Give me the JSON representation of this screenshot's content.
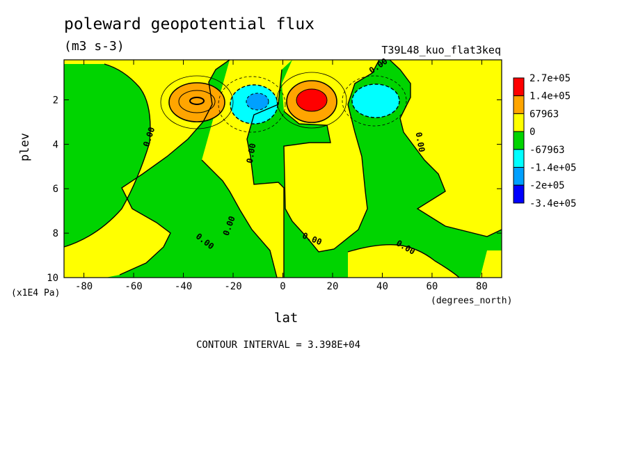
{
  "chart_data": {
    "type": "heatmap",
    "title": "poleward geopotential flux",
    "units": "(m3 s-3)",
    "run_id": "T39L48_kuo_flat3keq",
    "xlabel": "lat",
    "x_unit": "(degrees_north)",
    "ylabel": "plev",
    "y_multiplier": "(x1E4 Pa)",
    "contour_interval_text": "CONTOUR INTERVAL = 3.398E+04",
    "xlim": [
      -88,
      88
    ],
    "ylim": [
      10,
      0.2
    ],
    "x_ticks": [
      -80,
      -60,
      -40,
      -20,
      0,
      20,
      40,
      60,
      80
    ],
    "x_tick_labels": [
      "-80",
      "-60",
      "-40",
      "-20",
      "0",
      "20",
      "40",
      "60",
      "80"
    ],
    "y_ticks": [
      2,
      4,
      6,
      8,
      10
    ],
    "y_tick_labels": [
      "2",
      "4",
      "6",
      "8",
      "10"
    ],
    "levels_legend": [
      "2.7e+05",
      "1.4e+05",
      "67963",
      "0",
      "-67963",
      "-1.4e+05",
      "-2e+05",
      "-3.4e+05"
    ],
    "legend_colors": [
      "#ff0000",
      "#ffa500",
      "#ffff00",
      "#00d400",
      "#00ffff",
      "#00a0ff",
      "#0000ff"
    ],
    "contour_labels": [
      "0.00",
      "0.00",
      "0.00",
      "0.00",
      "0.00",
      "0.00",
      "0.00",
      "0.00"
    ],
    "features": [
      {
        "lat": -37,
        "plev": 2.0,
        "value": 200000.0,
        "sign": "positive"
      },
      {
        "lat": -10,
        "plev": 2.0,
        "value": -240000.0,
        "sign": "negative"
      },
      {
        "lat": 10,
        "plev": 2.0,
        "value": 290000.0,
        "sign": "positive"
      },
      {
        "lat": 37,
        "plev": 2.0,
        "value": -160000.0,
        "sign": "negative"
      }
    ]
  }
}
